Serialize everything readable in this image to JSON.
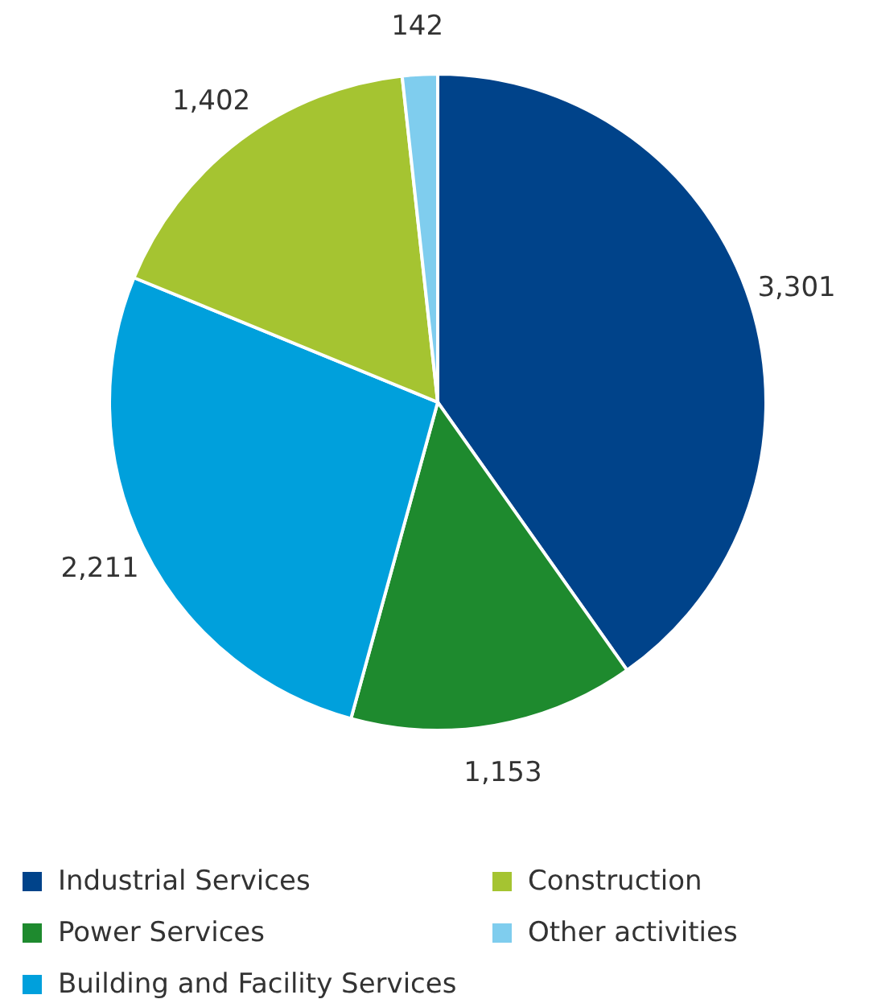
{
  "chart_data": {
    "type": "pie",
    "categories": [
      "Industrial Services",
      "Power Services",
      "Building and Facility Services",
      "Construction",
      "Other activities"
    ],
    "values": [
      3301,
      1153,
      2211,
      1402,
      142
    ],
    "colors": [
      "#00438a",
      "#1e8a2e",
      "#00a0dc",
      "#a5c431",
      "#7fcdee"
    ],
    "value_labels": [
      "3,301",
      "1,153",
      "2,211",
      "1,402",
      "142"
    ],
    "legend": "bottom"
  }
}
